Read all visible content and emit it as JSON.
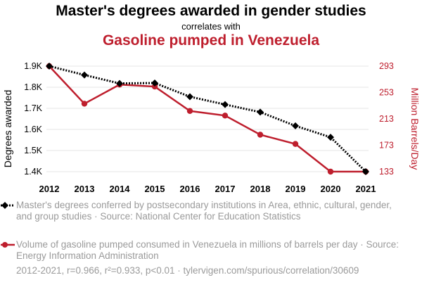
{
  "title": "Master's degrees awarded in gender studies",
  "subtitle": "correlates with",
  "title2": "Gasoline pumped in Venezuela",
  "legend": {
    "series1": "Master's degrees conferred by postsecondary institutions in Area, ethnic, cultural, gender, and group studies · Source: National Center for Education Statistics",
    "series2": "Volume of gasoline pumped consumed in Venezuela in millions of barrels per day · Source: Energy Information Administration"
  },
  "footer": "2012-2021, r=0.966, r²=0.933, p<0.01 · tylervigen.com/spurious/correlation/30609",
  "colors": {
    "series1": "#000000",
    "series2": "#be1e2d",
    "axis_text": "#000000",
    "footnote": "#9a9a9a"
  },
  "chart_data": {
    "type": "line",
    "x": [
      2012,
      2013,
      2014,
      2015,
      2016,
      2017,
      2018,
      2019,
      2020,
      2021
    ],
    "x_tick_labels": [
      "2012",
      "2013",
      "2014",
      "2015",
      "2016",
      "2017",
      "2018",
      "2019",
      "2020",
      "2021"
    ],
    "ylabel_left": "Degrees awarded",
    "ylabel_right": "Million Barrels/Day",
    "y_left_ticks": [
      "1.4K",
      "1.5K",
      "1.6K",
      "1.7K",
      "1.8K",
      "1.9K"
    ],
    "y_left_tick_values": [
      1400,
      1500,
      1600,
      1700,
      1800,
      1900
    ],
    "y_right_ticks": [
      "133",
      "173",
      "213",
      "253",
      "293"
    ],
    "y_right_tick_values": [
      133,
      173,
      213,
      253,
      293
    ],
    "ylim_left": [
      1400,
      1900
    ],
    "ylim_right": [
      133,
      293
    ],
    "grid": "horizontal",
    "legend_position": "bottom",
    "series": [
      {
        "axis": "left",
        "style": "dotted",
        "marker": "diamond",
        "values": [
          1900,
          1858,
          1818,
          1820,
          1755,
          1718,
          1682,
          1617,
          1563,
          1400
        ]
      },
      {
        "axis": "right",
        "style": "solid",
        "marker": "circle",
        "values": [
          293,
          236,
          265,
          262,
          225,
          218,
          189,
          175,
          133,
          133
        ]
      }
    ]
  }
}
